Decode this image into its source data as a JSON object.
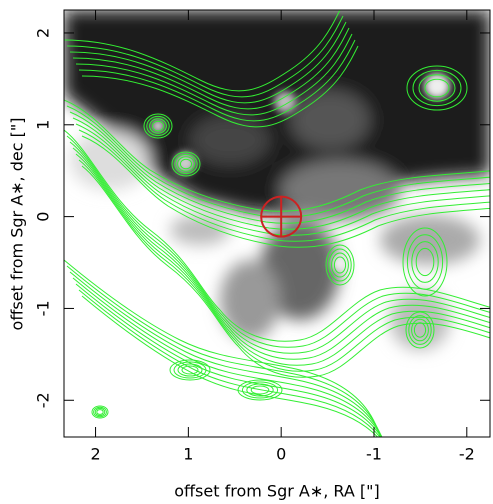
{
  "chart_data": {
    "type": "image",
    "xlabel": "offset from Sgr A∗, RA [\"]",
    "ylabel": "offset from Sgr A∗, dec [\"]",
    "xlim": [
      2.34,
      -2.25
    ],
    "ylim": [
      -2.4,
      2.25
    ],
    "xticks": [
      2,
      1,
      0,
      -1,
      -2
    ],
    "yticks": [
      -2,
      -1,
      0,
      1,
      2
    ],
    "marker": {
      "x": 0,
      "y": 0,
      "color": "#cc2222"
    },
    "contour_color": "#33ee33"
  }
}
